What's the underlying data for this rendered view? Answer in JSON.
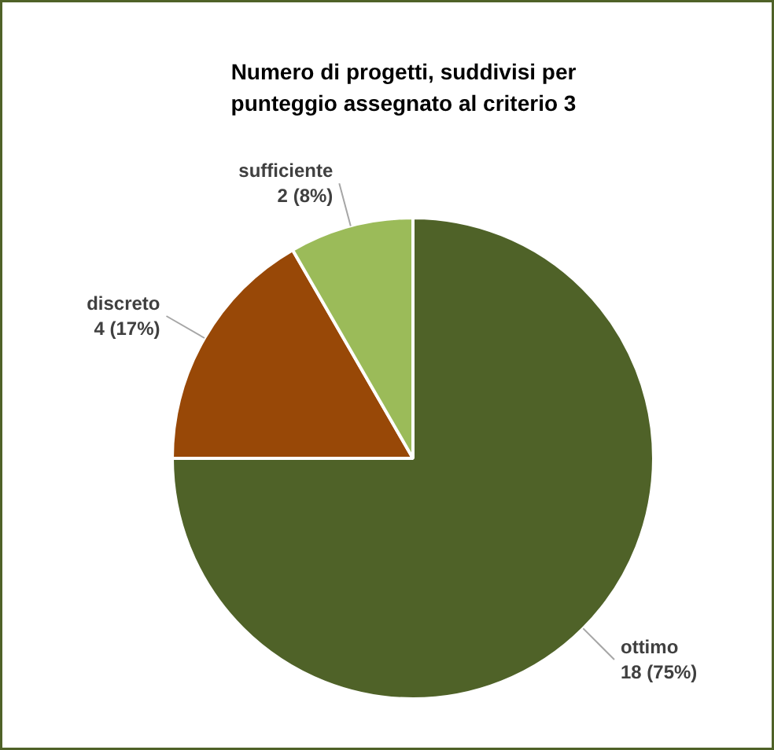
{
  "chart_data": {
    "type": "pie",
    "title": "Numero di progetti, suddivisi per punteggio assegnato al criterio 3",
    "categories": [
      "ottimo",
      "discreto",
      "sufficiente"
    ],
    "values": [
      18,
      4,
      2
    ],
    "value_labels": [
      "18 (75%)",
      "4 (17%)",
      "2 (8%)"
    ],
    "colors": [
      "#4f6228",
      "#984807",
      "#9bbb59"
    ]
  }
}
